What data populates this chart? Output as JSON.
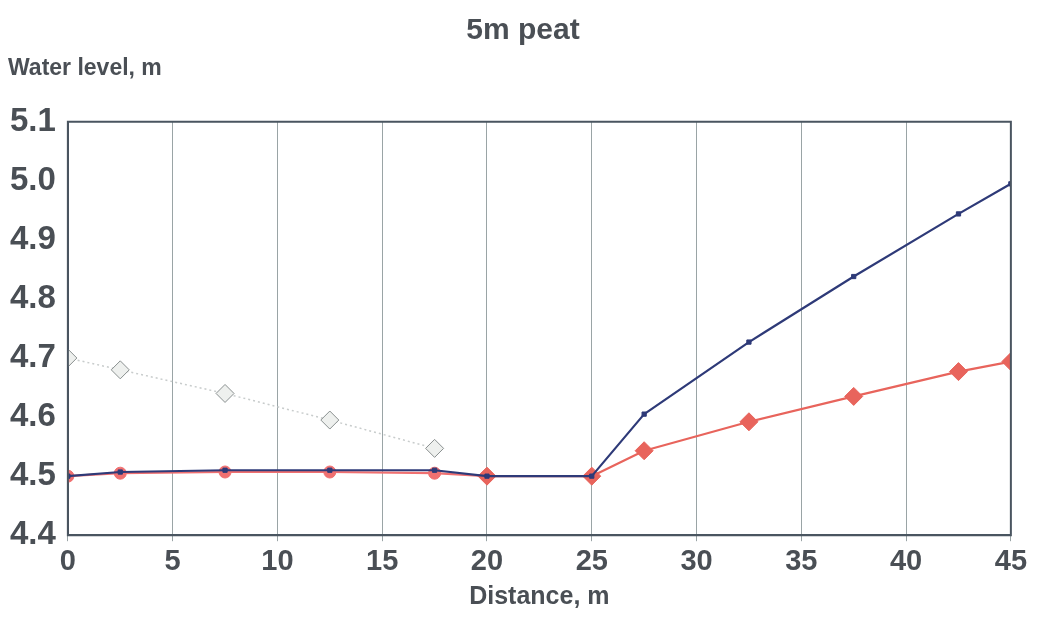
{
  "chart_data": {
    "type": "line",
    "title": "5m peat",
    "xlabel": "Distance, m",
    "ylabel": "Water level, m",
    "xlim": [
      0,
      45
    ],
    "xticks": [
      0,
      5,
      10,
      15,
      20,
      25,
      30,
      35,
      40,
      45
    ],
    "ylim": [
      4.4,
      5.1
    ],
    "yticks": [
      {
        "value": 4.4,
        "label": "4.4"
      },
      {
        "value": 4.5,
        "label": "4.5"
      },
      {
        "value": 4.6,
        "label": "4.6"
      },
      {
        "value": 4.7,
        "label": "4.7"
      },
      {
        "value": 4.8,
        "label": "4.8"
      },
      {
        "value": 4.9,
        "label": "4.9"
      },
      {
        "value": 5.0,
        "label": "5.0"
      },
      {
        "value": 5.1,
        "label": "5.1"
      }
    ],
    "grid": "x",
    "legend": false,
    "series": [
      {
        "color": "#c8cccc",
        "marker": "diamond",
        "line_style": "dotted",
        "x": [
          0,
          2.5,
          7.5,
          12.5,
          17.5
        ],
        "values": [
          4.7,
          4.68,
          4.64,
          4.595,
          4.547
        ]
      },
      {
        "color": "#f07070",
        "marker": "circle",
        "line_style": "solid",
        "x": [
          0,
          2.5,
          7.5,
          12.5,
          17.5,
          20
        ],
        "values": [
          4.5,
          4.505,
          4.507,
          4.507,
          4.505,
          4.5
        ]
      },
      {
        "color": "#e8645c",
        "marker": "diamond",
        "line_style": "solid",
        "x": [
          20,
          25,
          27.5,
          32.5,
          37.5,
          42.5,
          45
        ],
        "values": [
          4.5,
          4.5,
          4.543,
          4.592,
          4.635,
          4.677,
          4.694
        ]
      },
      {
        "color": "#2e3a78",
        "marker": "square",
        "line_style": "solid",
        "x": [
          0,
          2.5,
          7.5,
          12.5,
          17.5,
          20,
          25,
          27.5,
          32.5,
          37.5,
          42.5,
          45
        ],
        "values": [
          4.5,
          4.507,
          4.51,
          4.51,
          4.51,
          4.5,
          4.5,
          4.605,
          4.727,
          4.838,
          4.944,
          4.995
        ]
      }
    ]
  }
}
